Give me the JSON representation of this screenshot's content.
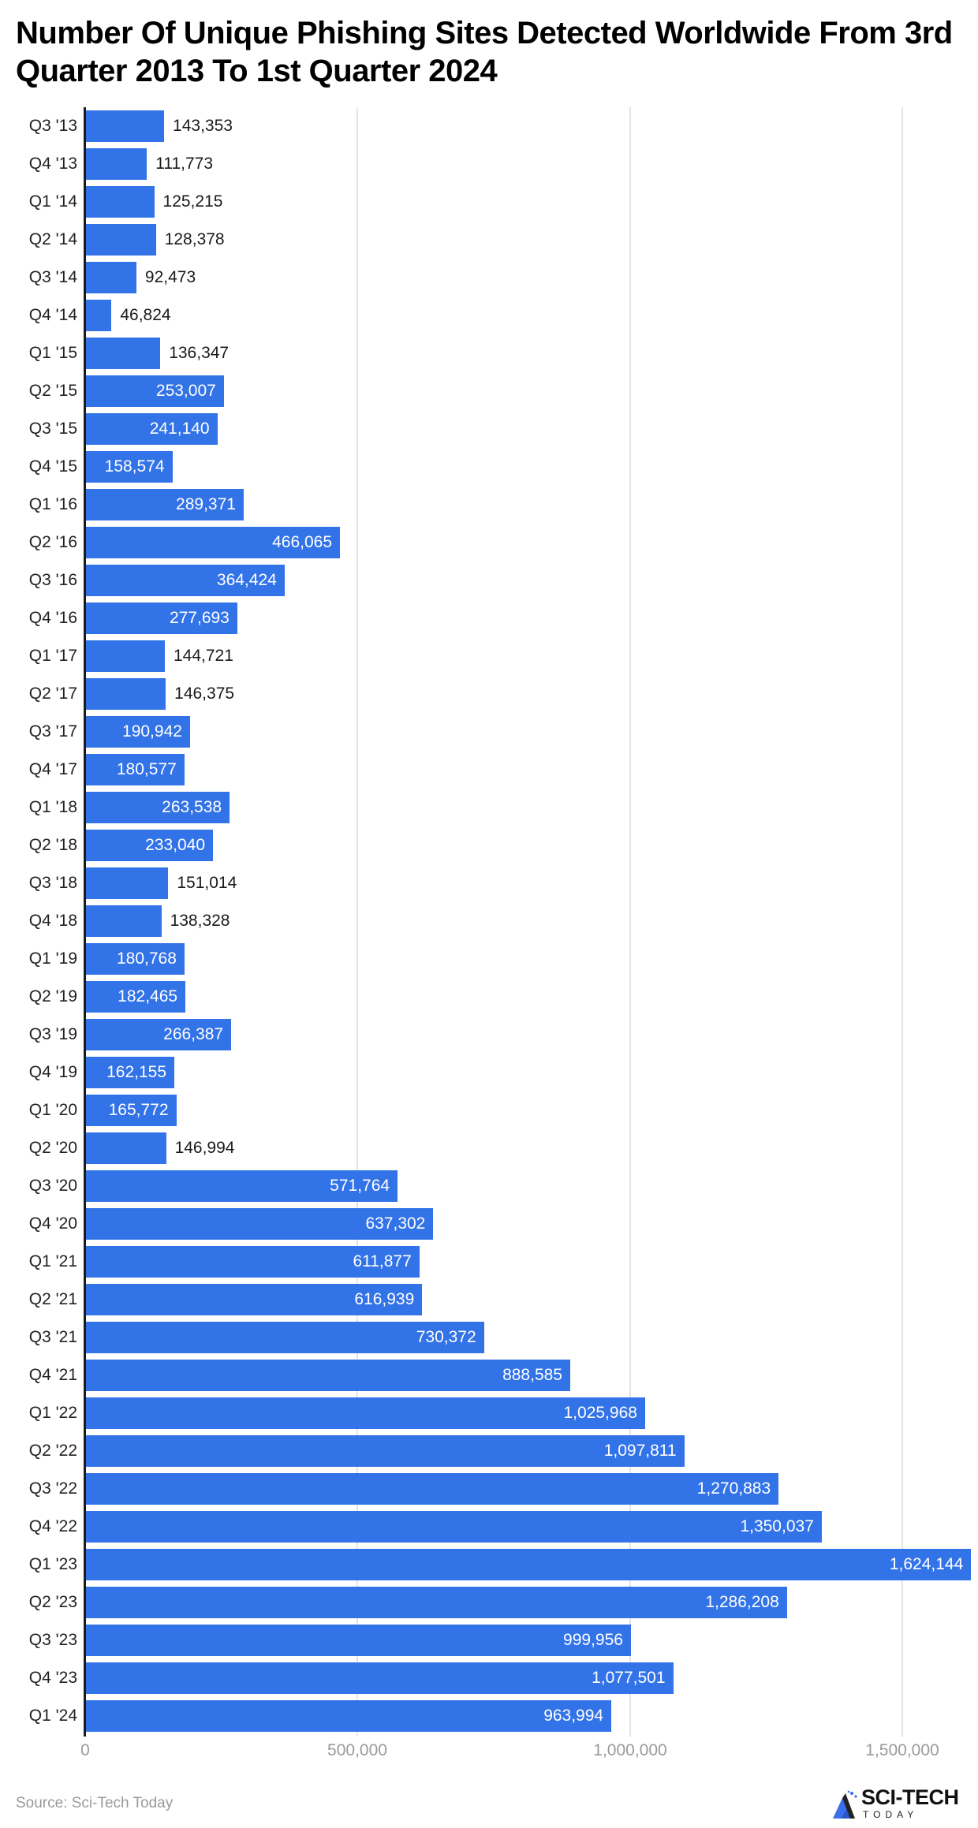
{
  "title": "Number Of Unique Phishing Sites Detected Worldwide From 3rd Quarter 2013 To 1st Quarter 2024",
  "source": "Source: Sci-Tech Today",
  "logo": {
    "name": "SCI-TECH",
    "sub": "TODAY",
    "icon": "sci-tech-logo-icon"
  },
  "colors": {
    "bar": "#3373e8",
    "grid": "#e4e4e4",
    "axis": "#1a1a1a",
    "tick_text": "#9a9a9a"
  },
  "axis": {
    "ticks": [
      "0",
      "500,000",
      "1,000,000",
      "1,500,000"
    ],
    "tick_values": [
      0,
      500000,
      1000000,
      1500000
    ]
  },
  "chart_data": {
    "type": "bar",
    "orientation": "horizontal",
    "title": "Number Of Unique Phishing Sites Detected Worldwide From 3rd Quarter 2013 To 1st Quarter 2024",
    "xlabel": "",
    "ylabel": "",
    "xlim": [
      0,
      1650000
    ],
    "grid": true,
    "legend": null,
    "categories": [
      "Q3 '13",
      "Q4 '13",
      "Q1 '14",
      "Q2 '14",
      "Q3 '14",
      "Q4 '14",
      "Q1 '15",
      "Q2 '15",
      "Q3 '15",
      "Q4 '15",
      "Q1 '16",
      "Q2 '16",
      "Q3 '16",
      "Q4 '16",
      "Q1 '17",
      "Q2 '17",
      "Q3 '17",
      "Q4 '17",
      "Q1 '18",
      "Q2 '18",
      "Q3 '18",
      "Q4 '18",
      "Q1 '19",
      "Q2 '19",
      "Q3 '19",
      "Q4 '19",
      "Q1 '20",
      "Q2 '20",
      "Q3 '20",
      "Q4 '20",
      "Q1 '21",
      "Q2 '21",
      "Q3 '21",
      "Q4 '21",
      "Q1 '22",
      "Q2 '22",
      "Q3 '22",
      "Q4 '22",
      "Q1 '23",
      "Q2 '23",
      "Q3 '23",
      "Q4 '23",
      "Q1 '24"
    ],
    "values": [
      143353,
      111773,
      125215,
      128378,
      92473,
      46824,
      136347,
      253007,
      241140,
      158574,
      289371,
      466065,
      364424,
      277693,
      144721,
      146375,
      190942,
      180577,
      263538,
      233040,
      151014,
      138328,
      180768,
      182465,
      266387,
      162155,
      165772,
      146994,
      571764,
      637302,
      611877,
      616939,
      730372,
      888585,
      1025968,
      1097811,
      1270883,
      1350037,
      1624144,
      1286208,
      999956,
      1077501,
      963994
    ],
    "labels": [
      "143,353",
      "111,773",
      "125,215",
      "128,378",
      "92,473",
      "46,824",
      "136,347",
      "253,007",
      "241,140",
      "158,574",
      "289,371",
      "466,065",
      "364,424",
      "277,693",
      "144,721",
      "146,375",
      "190,942",
      "180,577",
      "263,538",
      "233,040",
      "151,014",
      "138,328",
      "180,768",
      "182,465",
      "266,387",
      "162,155",
      "165,772",
      "146,994",
      "571,764",
      "637,302",
      "611,877",
      "616,939",
      "730,372",
      "888,585",
      "1,025,968",
      "1,097,811",
      "1,270,883",
      "1,350,037",
      "1,624,144",
      "1,286,208",
      "999,956",
      "1,077,501",
      "963,994"
    ]
  }
}
